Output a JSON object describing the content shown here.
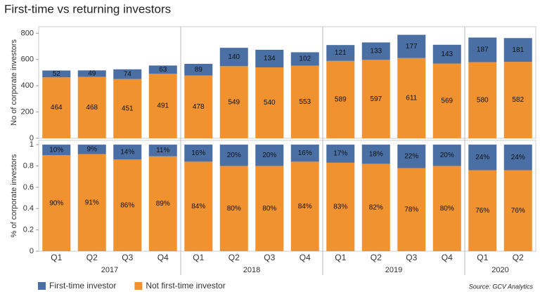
{
  "chart_data": [
    {
      "type": "stacked-bar",
      "title": "First-time vs returning investors",
      "ylabel": "No of corporate investors",
      "ylim": [
        0,
        850
      ],
      "yticks": [
        0,
        200,
        400,
        600,
        800
      ],
      "series": [
        {
          "name": "Not first-time investor",
          "color": "#f0922f",
          "values": [
            464,
            468,
            451,
            491,
            478,
            549,
            540,
            553,
            589,
            597,
            611,
            569,
            580,
            582
          ]
        },
        {
          "name": "First-time investor",
          "color": "#4a6fa5",
          "values": [
            52,
            49,
            74,
            63,
            89,
            140,
            134,
            102,
            121,
            133,
            177,
            143,
            187,
            181
          ]
        }
      ],
      "source": "Source: GCV Analytics"
    },
    {
      "type": "stacked-bar",
      "ylabel": "% of corporate investors",
      "ylim": [
        0,
        1.04
      ],
      "yticks": [
        0,
        0.2,
        0.4,
        0.6,
        0.8,
        1
      ],
      "groups": [
        {
          "name": "2017",
          "categories": [
            "Q1",
            "Q2",
            "Q3",
            "Q4"
          ]
        },
        {
          "name": "2018",
          "categories": [
            "Q1",
            "Q2",
            "Q3",
            "Q4"
          ]
        },
        {
          "name": "2019",
          "categories": [
            "Q1",
            "Q2",
            "Q3",
            "Q4"
          ]
        },
        {
          "name": "2020",
          "categories": [
            "Q1",
            "Q2"
          ]
        }
      ],
      "series": [
        {
          "color": "#f0922f",
          "values": [
            0.9,
            0.91,
            0.86,
            0.89,
            0.84,
            0.8,
            0.8,
            0.84,
            0.83,
            0.82,
            0.78,
            0.8,
            0.76,
            0.76
          ],
          "value_labels": [
            "90%",
            "91%",
            "86%",
            "89%",
            "84%",
            "80%",
            "80%",
            "84%",
            "83%",
            "82%",
            "78%",
            "80%",
            "76%",
            "76%"
          ]
        },
        {
          "color": "#4a6fa5",
          "values": [
            0.1,
            0.09,
            0.14,
            0.11,
            0.16,
            0.2,
            0.2,
            0.16,
            0.17,
            0.18,
            0.22,
            0.2,
            0.24,
            0.24
          ],
          "value_labels": [
            "10%",
            "9%",
            "14%",
            "11%",
            "16%",
            "20%",
            "20%",
            "16%",
            "17%",
            "18%",
            "22%",
            "20%",
            "24%",
            "24%"
          ]
        }
      ]
    }
  ]
}
